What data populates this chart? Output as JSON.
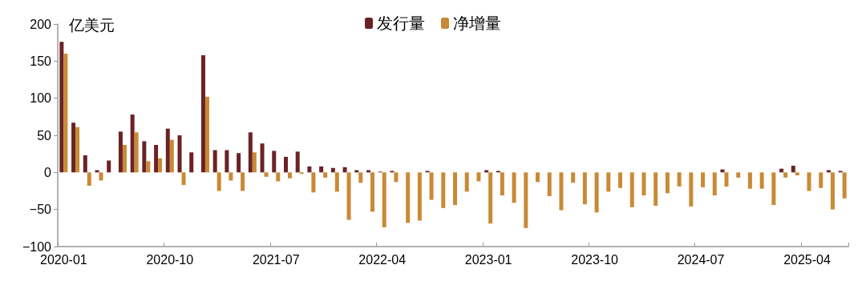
{
  "chart_data": {
    "type": "bar",
    "ylabel": "亿美元",
    "categories": [
      "2020-01",
      null,
      null,
      null,
      null,
      null,
      null,
      null,
      null,
      "2020-10",
      null,
      null,
      null,
      null,
      null,
      null,
      null,
      null,
      "2021-07",
      null,
      null,
      null,
      null,
      null,
      null,
      null,
      null,
      "2022-04",
      null,
      null,
      null,
      null,
      null,
      null,
      null,
      null,
      "2023-01",
      null,
      null,
      null,
      null,
      null,
      null,
      null,
      null,
      "2023-10",
      null,
      null,
      null,
      null,
      null,
      null,
      null,
      null,
      "2024-07",
      null,
      null,
      null,
      null,
      null,
      null,
      null,
      null,
      "2025-04",
      null,
      null,
      null
    ],
    "series": [
      {
        "name": "发行量",
        "color": "#6b2226",
        "values": [
          176,
          67,
          23,
          3,
          16,
          55,
          78,
          42,
          37,
          59,
          50,
          27,
          158,
          30,
          30,
          26,
          54,
          39,
          29,
          21,
          28,
          8,
          8,
          6,
          7,
          3,
          3,
          1,
          2,
          0,
          0,
          2,
          0,
          0,
          0,
          0,
          3,
          2,
          0,
          0,
          0,
          0,
          0,
          0,
          0,
          0,
          0,
          0,
          0,
          0,
          0,
          0,
          0,
          0,
          0,
          0,
          4,
          0,
          0,
          0,
          0,
          5,
          9,
          0,
          0,
          3,
          2
        ]
      },
      {
        "name": "净增量",
        "color": "#c98a35",
        "values": [
          160,
          61,
          -18,
          -11,
          0,
          37,
          54,
          15,
          19,
          44,
          -17,
          0,
          102,
          -25,
          -11,
          -25,
          27,
          -6,
          -12,
          -8,
          -2,
          -27,
          -7,
          -26,
          -64,
          -14,
          -53,
          -74,
          -13,
          -68,
          -65,
          -37,
          -48,
          -44,
          -26,
          -12,
          -69,
          -31,
          -41,
          -75,
          -13,
          -32,
          -51,
          -14,
          -43,
          -54,
          -26,
          -21,
          -47,
          -31,
          -45,
          -28,
          -19,
          -46,
          -20,
          -31,
          -19,
          -7,
          -22,
          -22,
          -44,
          -7,
          -4,
          -25,
          -21,
          -50,
          -35
        ]
      }
    ],
    "ylim": [
      -100,
      200
    ],
    "yticks": [
      -100,
      -50,
      0,
      50,
      100,
      150,
      200
    ],
    "grid": false,
    "legend": "top"
  }
}
